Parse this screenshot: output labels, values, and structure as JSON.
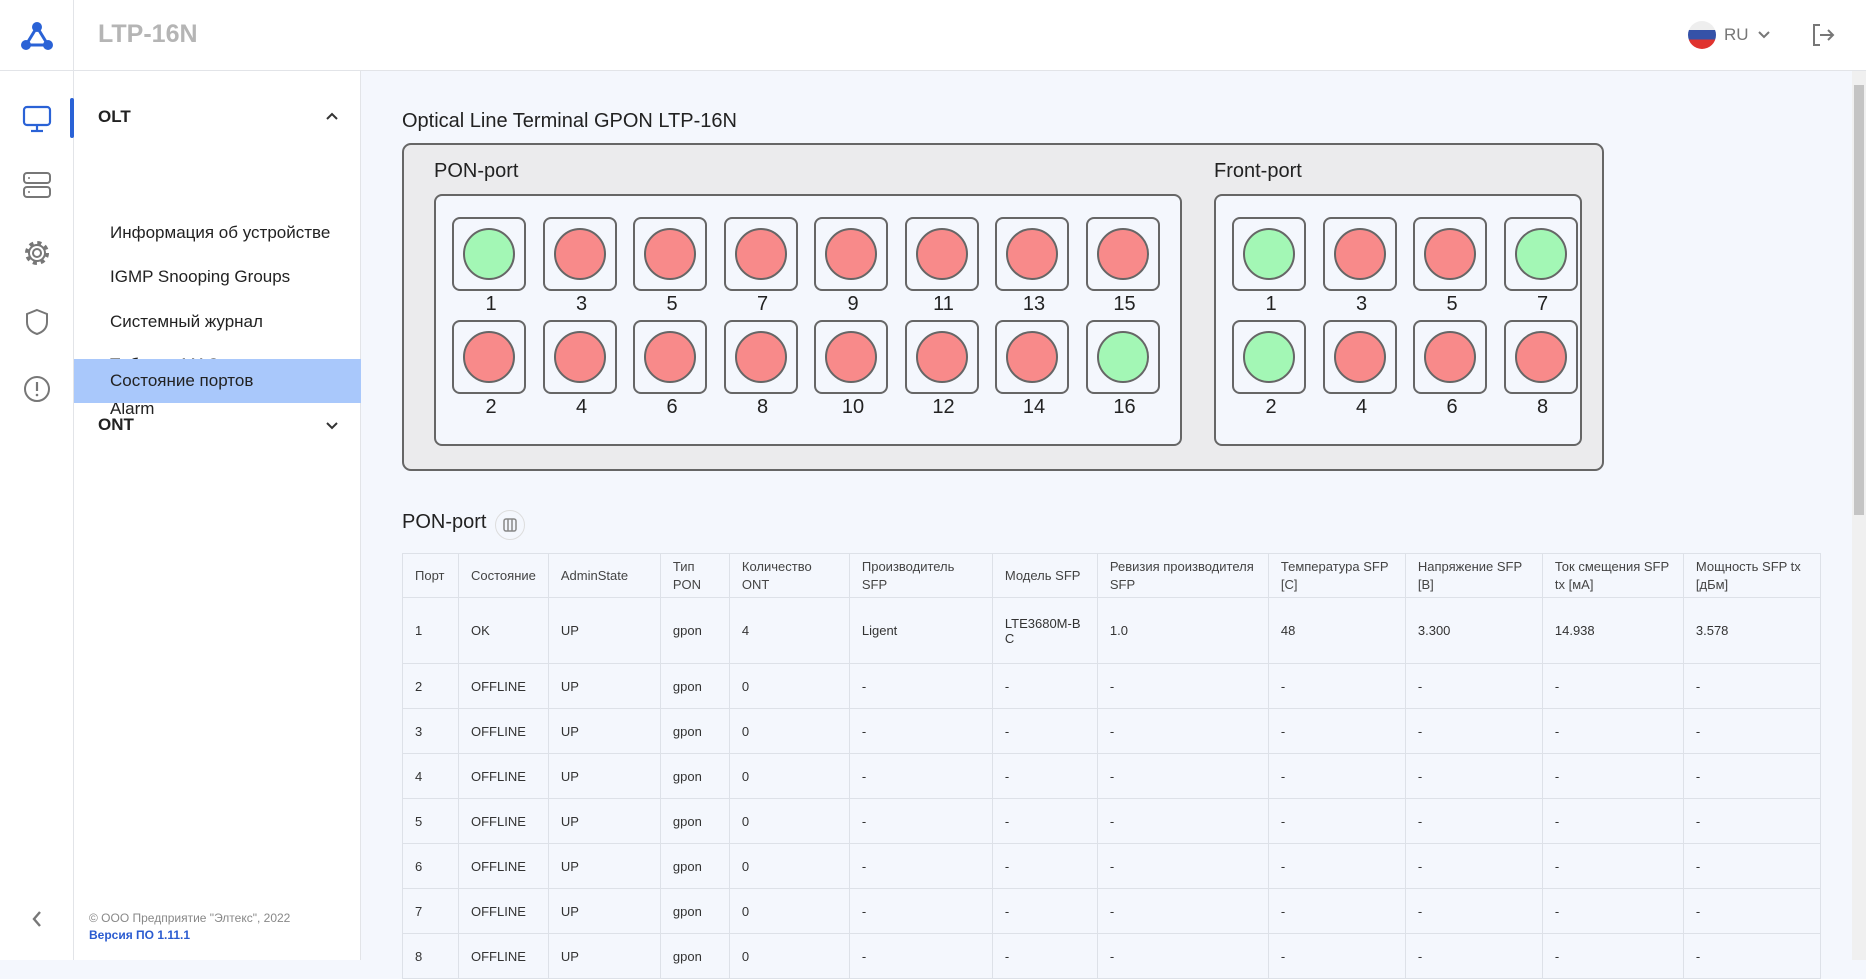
{
  "header": {
    "title": "LTP-16N",
    "lang": "RU"
  },
  "sidebar": {
    "groups": [
      {
        "label": "OLT",
        "expanded": true
      },
      {
        "label": "ONT",
        "expanded": false
      }
    ],
    "items": [
      "Информация об устройстве",
      "IGMP Snooping Groups",
      "Системный журнал",
      "Таблица MAC-адресов",
      "Alarm",
      "Состояние портов"
    ],
    "active_item": "Состояние портов",
    "copyright": "© ООО Предприятие \"Элтекс\", 2022",
    "version": "Версия ПО 1.11.1"
  },
  "colors": {
    "up": "#a3f7b5",
    "down": "#f88a8a",
    "accent": "#2a62d6",
    "active_bg": "#a9c8fb"
  },
  "device": {
    "title": "Optical Line Terminal GPON LTP-16N",
    "pon_label": "PON-port",
    "front_label": "Front-port",
    "pon_ports": [
      {
        "n": "1",
        "up": true
      },
      {
        "n": "3",
        "up": false
      },
      {
        "n": "5",
        "up": false
      },
      {
        "n": "7",
        "up": false
      },
      {
        "n": "9",
        "up": false
      },
      {
        "n": "11",
        "up": false
      },
      {
        "n": "13",
        "up": false
      },
      {
        "n": "15",
        "up": false
      },
      {
        "n": "2",
        "up": false
      },
      {
        "n": "4",
        "up": false
      },
      {
        "n": "6",
        "up": false
      },
      {
        "n": "8",
        "up": false
      },
      {
        "n": "10",
        "up": false
      },
      {
        "n": "12",
        "up": false
      },
      {
        "n": "14",
        "up": false
      },
      {
        "n": "16",
        "up": true
      }
    ],
    "front_ports": [
      {
        "n": "1",
        "up": true
      },
      {
        "n": "3",
        "up": false
      },
      {
        "n": "5",
        "up": false
      },
      {
        "n": "7",
        "up": true
      },
      {
        "n": "2",
        "up": true
      },
      {
        "n": "4",
        "up": false
      },
      {
        "n": "6",
        "up": false
      },
      {
        "n": "8",
        "up": false
      }
    ]
  },
  "table": {
    "title": "PON-port",
    "headers": [
      "Порт",
      "Состояние",
      "AdminState",
      "Тип PON",
      "Количество ONT",
      "Производитель SFP",
      "Модель SFP",
      "Ревизия производителя SFP",
      "Температура SFP [C]",
      "Напряжение SFP [В]",
      "Ток смещения SFP tx [мА]",
      "Мощность SFP tx [дБм]"
    ],
    "rows": [
      [
        "1",
        "OK",
        "UP",
        "gpon",
        "4",
        "Ligent",
        "LTE3680M-BC",
        "1.0",
        "48",
        "3.300",
        "14.938",
        "3.578"
      ],
      [
        "2",
        "OFFLINE",
        "UP",
        "gpon",
        "0",
        "-",
        "-",
        "-",
        "-",
        "-",
        "-",
        "-"
      ],
      [
        "3",
        "OFFLINE",
        "UP",
        "gpon",
        "0",
        "-",
        "-",
        "-",
        "-",
        "-",
        "-",
        "-"
      ],
      [
        "4",
        "OFFLINE",
        "UP",
        "gpon",
        "0",
        "-",
        "-",
        "-",
        "-",
        "-",
        "-",
        "-"
      ],
      [
        "5",
        "OFFLINE",
        "UP",
        "gpon",
        "0",
        "-",
        "-",
        "-",
        "-",
        "-",
        "-",
        "-"
      ],
      [
        "6",
        "OFFLINE",
        "UP",
        "gpon",
        "0",
        "-",
        "-",
        "-",
        "-",
        "-",
        "-",
        "-"
      ],
      [
        "7",
        "OFFLINE",
        "UP",
        "gpon",
        "0",
        "-",
        "-",
        "-",
        "-",
        "-",
        "-",
        "-"
      ],
      [
        "8",
        "OFFLINE",
        "UP",
        "gpon",
        "0",
        "-",
        "-",
        "-",
        "-",
        "-",
        "-",
        "-"
      ]
    ]
  }
}
